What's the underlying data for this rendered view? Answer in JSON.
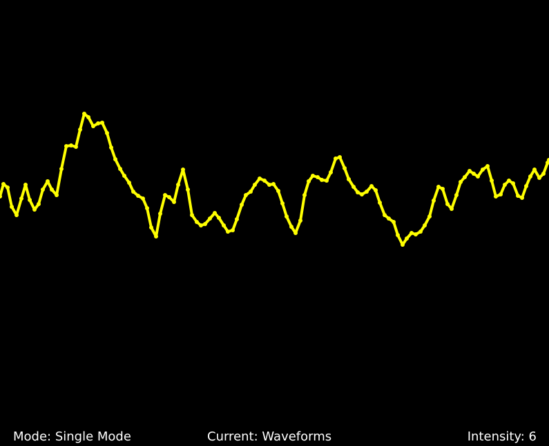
{
  "status_bar": {
    "mode": "Mode: Single Mode",
    "current": "Current: Waveforms",
    "intensity": "Intensity: 6"
  }
}
